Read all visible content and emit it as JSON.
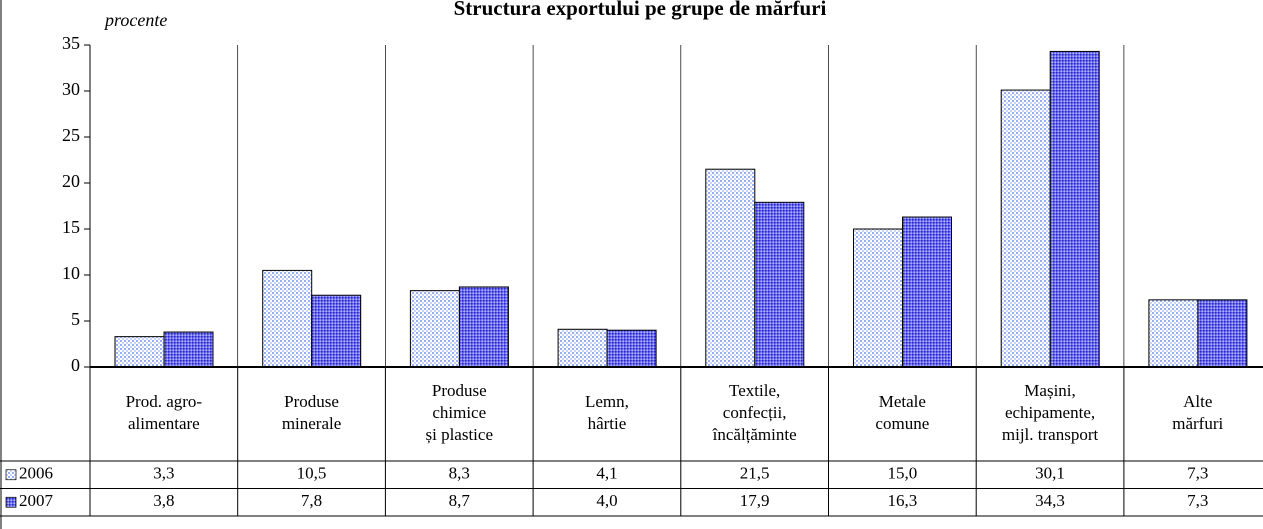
{
  "chart_data": {
    "type": "bar",
    "title": "Structura exportului pe grupe de mărfuri",
    "y_label": "procente",
    "categories": [
      [
        "Prod. agro-",
        "alimentare"
      ],
      [
        "Produse",
        "minerale"
      ],
      [
        "Produse",
        "chimice",
        "și plastice"
      ],
      [
        "Lemn,",
        "hârtie"
      ],
      [
        "Textile,",
        "confecții,",
        "încălțăminte"
      ],
      [
        "Metale",
        "comune"
      ],
      [
        "Mașini,",
        "echipamente,",
        "mijl. transport"
      ],
      [
        "Alte",
        "mărfuri"
      ]
    ],
    "series": [
      {
        "name": "2006",
        "color": "#9ab0f0",
        "values": [
          3.3,
          10.5,
          8.3,
          4.1,
          21.5,
          15.0,
          30.1,
          7.3
        ],
        "value_labels": [
          "3,3",
          "10,5",
          "8,3",
          "4,1",
          "21,5",
          "15,0",
          "30,1",
          "7,3"
        ]
      },
      {
        "name": "2007",
        "color": "#4a4ae0",
        "values": [
          3.8,
          7.8,
          8.7,
          4.0,
          17.9,
          16.3,
          34.3,
          7.3
        ],
        "value_labels": [
          "3,8",
          "7,8",
          "8,7",
          "4,0",
          "17,9",
          "16,3",
          "34,3",
          "7,3"
        ]
      }
    ],
    "ylim": [
      0,
      35
    ],
    "yticks": [
      0,
      5,
      10,
      15,
      20,
      25,
      30,
      35
    ],
    "grid": true
  }
}
